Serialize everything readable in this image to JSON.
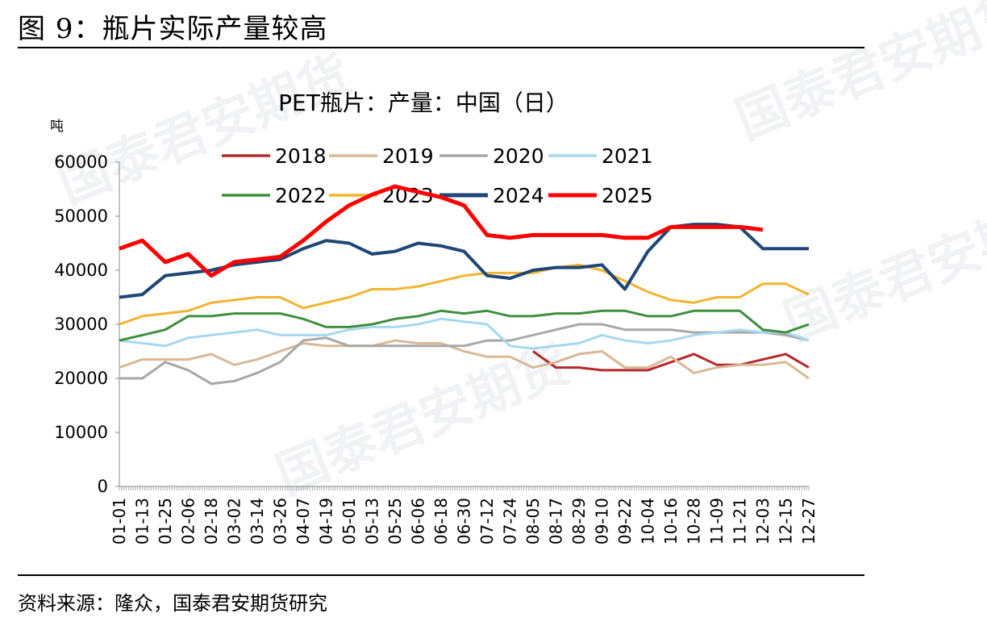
{
  "figure": {
    "title": "图 9：瓶片实际产量较高",
    "source": "资料来源：隆众，国泰君安期货研究",
    "watermark": "国泰君安期货"
  },
  "chart_data": {
    "type": "line",
    "title": "PET瓶片：产量：中国（日）",
    "ylabel": "吨",
    "xlabel": "",
    "ylim": [
      0,
      60000
    ],
    "yticks": [
      0,
      10000,
      20000,
      30000,
      40000,
      50000,
      60000
    ],
    "x": [
      "01-01",
      "01-13",
      "01-25",
      "02-06",
      "02-18",
      "03-02",
      "03-14",
      "03-26",
      "04-07",
      "04-19",
      "05-01",
      "05-13",
      "05-25",
      "06-06",
      "06-18",
      "06-30",
      "07-12",
      "07-24",
      "08-05",
      "08-17",
      "08-29",
      "09-10",
      "09-22",
      "10-04",
      "10-16",
      "10-28",
      "11-09",
      "11-21",
      "12-03",
      "12-15",
      "12-27"
    ],
    "legend_placement": "top",
    "grid": false,
    "series": [
      {
        "name": "2018",
        "color": "#b5282d",
        "values": [
          null,
          null,
          null,
          null,
          null,
          null,
          null,
          null,
          null,
          null,
          null,
          null,
          null,
          null,
          null,
          null,
          null,
          null,
          25000,
          22000,
          22000,
          21500,
          21500,
          21500,
          23000,
          24500,
          22500,
          22500,
          23500,
          24500,
          22000
        ]
      },
      {
        "name": "2019",
        "color": "#d9b896",
        "values": [
          22000,
          23500,
          23500,
          23500,
          24500,
          22500,
          23500,
          25000,
          26500,
          26000,
          26000,
          26000,
          27000,
          26500,
          26500,
          25000,
          24000,
          24000,
          22000,
          23000,
          24500,
          25000,
          22000,
          22000,
          24000,
          21000,
          22000,
          22500,
          22500,
          23000,
          20000
        ]
      },
      {
        "name": "2020",
        "color": "#a8a8a8",
        "values": [
          20000,
          20000,
          23000,
          21500,
          19000,
          19500,
          21000,
          23000,
          27000,
          27500,
          26000,
          26000,
          26000,
          26000,
          26000,
          26000,
          27000,
          27000,
          28000,
          29000,
          30000,
          30000,
          29000,
          29000,
          29000,
          28500,
          28500,
          28500,
          28500,
          28000,
          27000
        ]
      },
      {
        "name": "2021",
        "color": "#a6d8ef",
        "values": [
          27000,
          26500,
          26000,
          27500,
          28000,
          28500,
          29000,
          28000,
          28000,
          28000,
          29000,
          29500,
          29500,
          30000,
          31000,
          30500,
          30000,
          26000,
          25500,
          26000,
          26500,
          28000,
          27000,
          26500,
          27000,
          28000,
          28500,
          29000,
          28500,
          28500,
          27000
        ]
      },
      {
        "name": "2022",
        "color": "#3e8f3e",
        "values": [
          27000,
          28000,
          29000,
          31500,
          31500,
          32000,
          32000,
          32000,
          31000,
          29500,
          29500,
          30000,
          31000,
          31500,
          32500,
          32000,
          32500,
          31500,
          31500,
          32000,
          32000,
          32500,
          32500,
          31500,
          31500,
          32500,
          32500,
          32500,
          29000,
          28500,
          30000
        ]
      },
      {
        "name": "2023",
        "color": "#f3b431",
        "values": [
          30000,
          31500,
          32000,
          32500,
          34000,
          34500,
          35000,
          35000,
          33000,
          34000,
          35000,
          36500,
          36500,
          37000,
          38000,
          39000,
          39500,
          39500,
          39500,
          40500,
          41000,
          40000,
          38000,
          36000,
          34500,
          34000,
          35000,
          35000,
          37500,
          37500,
          35500
        ]
      },
      {
        "name": "2024",
        "color": "#1e4676",
        "values": [
          35000,
          35500,
          39000,
          39500,
          40000,
          41000,
          41500,
          42000,
          44000,
          45500,
          45000,
          43000,
          43500,
          45000,
          44500,
          43500,
          39000,
          38500,
          40000,
          40500,
          40500,
          41000,
          36500,
          43500,
          48000,
          48500,
          48500,
          48000,
          44000,
          44000,
          44000
        ]
      },
      {
        "name": "2025",
        "color": "#ff0000",
        "values": [
          44000,
          45500,
          41500,
          43000,
          39000,
          41500,
          42000,
          42500,
          45500,
          49000,
          52000,
          54000,
          55500,
          54500,
          53500,
          52000,
          46500,
          46000,
          46500,
          46500,
          46500,
          46500,
          46000,
          46000,
          48000,
          48000,
          48000,
          48000,
          47500,
          null,
          null
        ]
      }
    ]
  }
}
